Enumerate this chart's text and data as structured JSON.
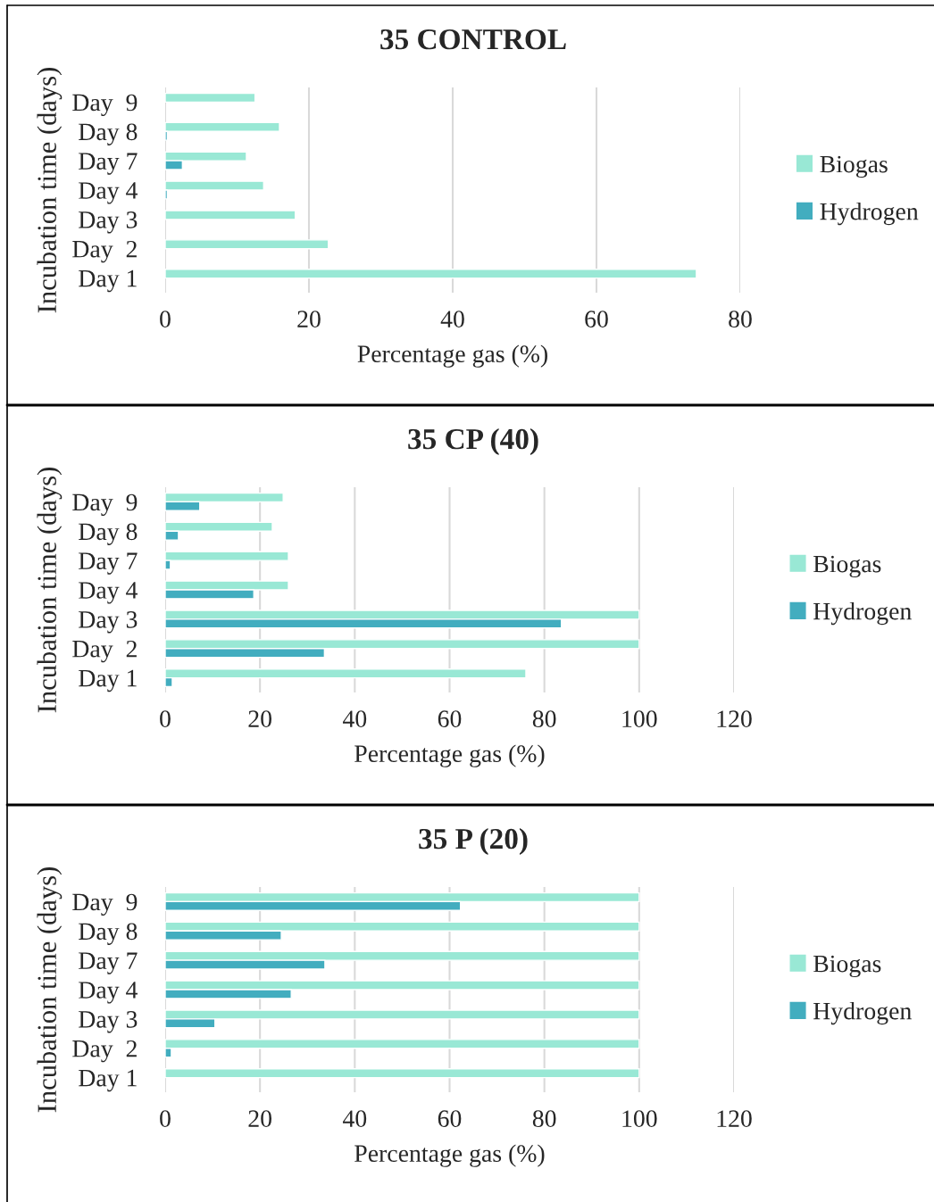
{
  "chart_data": [
    {
      "type": "bar",
      "orientation": "horizontal",
      "title": "35 CONTROL",
      "xlabel": "Percentage gas (%)",
      "ylabel": "Incubation time (days)",
      "categories": [
        "Day  9",
        "Day 8",
        "Day 7",
        "Day 4",
        "Day 3",
        "Day  2",
        "Day 1"
      ],
      "series": [
        {
          "name": "Biogas",
          "color": "#99e8d5",
          "values": [
            12.5,
            15.9,
            11.3,
            13.7,
            18.1,
            22.7,
            73.9
          ]
        },
        {
          "name": "Hydrogen",
          "color": "#42adbf",
          "values": [
            null,
            0.3,
            2.4,
            0.3,
            null,
            null,
            null
          ]
        }
      ],
      "xlim": [
        0,
        80
      ],
      "xticks": [
        0,
        20,
        40,
        60,
        80
      ],
      "grid": "x",
      "legend": "right"
    },
    {
      "type": "bar",
      "orientation": "horizontal",
      "title": "35 CP (40)",
      "xlabel": "Percentage gas (%)",
      "ylabel": "Incubation time (days)",
      "categories": [
        "Day  9",
        "Day 8",
        "Day 7",
        "Day 4",
        "Day 3",
        "Day  2",
        "Day 1"
      ],
      "series": [
        {
          "name": "Biogas",
          "color": "#99e8d5",
          "values": [
            24.9,
            22.6,
            26,
            26,
            100,
            100,
            76.1
          ]
        },
        {
          "name": "Hydrogen",
          "color": "#42adbf",
          "values": [
            7.3,
            2.8,
            1.1,
            18.7,
            83.6,
            33.6,
            1.5
          ]
        }
      ],
      "xlim": [
        0,
        120
      ],
      "xticks": [
        0,
        20,
        40,
        60,
        80,
        100,
        120
      ],
      "grid": "x",
      "legend": "right"
    },
    {
      "type": "bar",
      "orientation": "horizontal",
      "title": "35 P (20)",
      "xlabel": "Percentage gas (%)",
      "ylabel": "Incubation time (days)",
      "categories": [
        "Day  9",
        "Day 8",
        "Day 7",
        "Day 4",
        "Day 3",
        "Day  2",
        "Day 1"
      ],
      "series": [
        {
          "name": "Biogas",
          "color": "#99e8d5",
          "values": [
            100,
            100,
            100,
            100,
            100,
            100,
            100
          ]
        },
        {
          "name": "Hydrogen",
          "color": "#42adbf",
          "values": [
            62.3,
            24.5,
            33.7,
            26.6,
            10.5,
            1.3,
            null
          ]
        }
      ],
      "xlim": [
        0,
        120
      ],
      "xticks": [
        0,
        20,
        40,
        60,
        80,
        100,
        120
      ],
      "grid": "x",
      "legend": "right"
    }
  ]
}
